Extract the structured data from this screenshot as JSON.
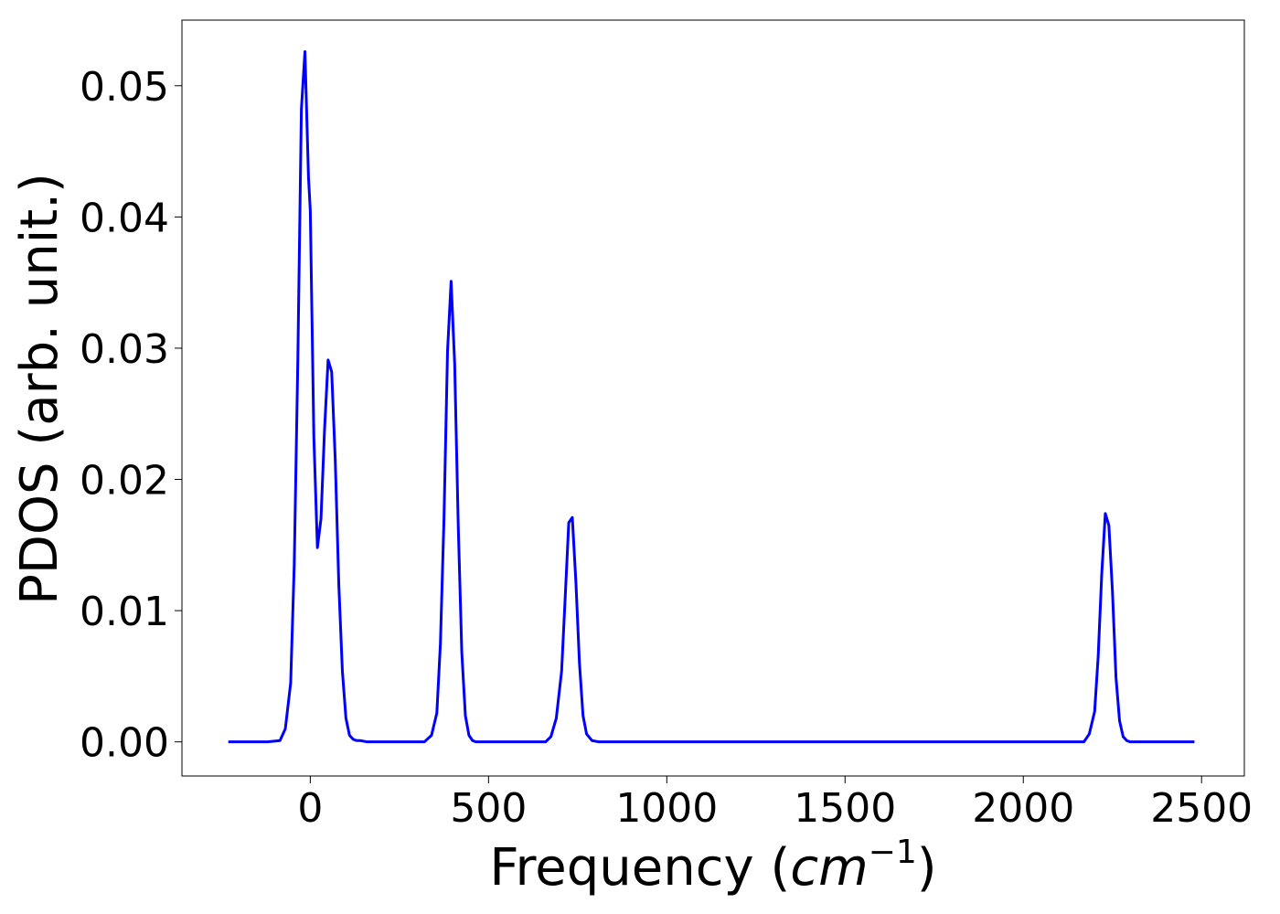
{
  "chart_data": {
    "type": "line",
    "title": "",
    "xlabel_text": "Frequency (",
    "xlabel_math": "cm",
    "xlabel_sup": "−1",
    "xlabel_close": ")",
    "ylabel": "PDOS (arb. unit.)",
    "xlim": [
      -360,
      2620
    ],
    "ylim": [
      -0.0026,
      0.055
    ],
    "x_ticks": [
      0,
      500,
      1000,
      1500,
      2000,
      2500
    ],
    "x_tick_labels": [
      "0",
      "500",
      "1000",
      "1500",
      "2000",
      "2500"
    ],
    "y_ticks": [
      0.0,
      0.01,
      0.02,
      0.03,
      0.04,
      0.05
    ],
    "y_tick_labels": [
      "0.00",
      "0.01",
      "0.02",
      "0.03",
      "0.04",
      "0.05"
    ],
    "grid": false,
    "legend": "none",
    "series_color": "#0000ff",
    "series": [
      {
        "x": [
          -230,
          -120,
          -85,
          -70,
          -55,
          -45,
          -35,
          -25,
          -15,
          -5,
          0,
          10,
          20,
          30,
          40,
          50,
          60,
          70,
          80,
          90,
          100,
          110,
          120,
          130,
          140,
          160,
          180,
          200,
          250,
          320,
          340,
          355,
          365,
          375,
          385,
          395,
          405,
          415,
          425,
          435,
          445,
          455,
          465,
          480,
          500,
          600,
          660,
          675,
          690,
          705,
          715,
          725,
          735,
          745,
          755,
          765,
          775,
          790,
          810,
          900,
          1500,
          2150,
          2170,
          2185,
          2200,
          2210,
          2220,
          2230,
          2240,
          2250,
          2260,
          2270,
          2280,
          2290,
          2300,
          2315,
          2340,
          2480
        ],
        "y": [
          0.0,
          0.0,
          0.0001,
          0.001,
          0.0045,
          0.0135,
          0.029,
          0.0482,
          0.0526,
          0.043,
          0.0405,
          0.0232,
          0.0148,
          0.017,
          0.0238,
          0.0291,
          0.0282,
          0.0215,
          0.012,
          0.0054,
          0.0018,
          0.0005,
          0.0002,
          0.0001,
          0.0001,
          0.0,
          0.0,
          0.0,
          0.0,
          0.0,
          0.0005,
          0.0022,
          0.0075,
          0.017,
          0.0298,
          0.0351,
          0.0288,
          0.0165,
          0.0068,
          0.002,
          0.0005,
          0.0001,
          0.0,
          0.0,
          0.0,
          0.0,
          0.0,
          0.0004,
          0.0018,
          0.0054,
          0.011,
          0.0167,
          0.0171,
          0.0122,
          0.006,
          0.002,
          0.0006,
          0.0001,
          0.0,
          0.0,
          0.0,
          0.0,
          0.0,
          0.0006,
          0.0023,
          0.0065,
          0.0128,
          0.0174,
          0.0165,
          0.0115,
          0.0049,
          0.0016,
          0.0004,
          0.0001,
          0.0,
          0.0,
          0.0,
          0.0
        ]
      }
    ]
  }
}
